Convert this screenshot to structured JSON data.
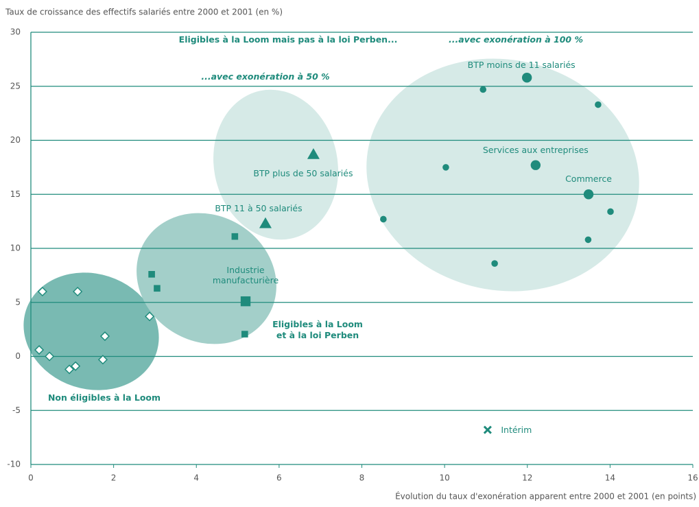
{
  "chart_data": {
    "type": "scatter",
    "y_axis_label": "Taux de croissance des effectifs salariés entre 2000 et 2001 (en %)",
    "x_axis_label": "Évolution du taux d'exonération apparent entre 2000 et 2001 (en points)",
    "xlim": [
      0,
      16
    ],
    "xticks": [
      0,
      2,
      4,
      6,
      8,
      10,
      12,
      14,
      16
    ],
    "ylim": [
      -10,
      30
    ],
    "yticks": [
      -10,
      -5,
      0,
      5,
      10,
      15,
      20,
      25,
      30
    ],
    "grid": true,
    "color": "#1f8b7c",
    "series": [
      {
        "marker": "diamond",
        "x": [
          0.28,
          1.13,
          1.79,
          2.87,
          0.2,
          0.45,
          1.08,
          0.93,
          1.74
        ],
        "values": [
          6.0,
          6.0,
          1.87,
          3.7,
          0.6,
          0.0,
          -0.9,
          -1.2,
          -0.3
        ]
      },
      {
        "marker": "square",
        "x": [
          2.92,
          3.05,
          4.93,
          5.19,
          5.17
        ],
        "values": [
          7.6,
          6.3,
          11.1,
          5.1,
          2.06
        ],
        "labels": [
          null,
          null,
          null,
          "Industrie manufacturière",
          null
        ]
      },
      {
        "marker": "triangle",
        "x": [
          6.83,
          5.67
        ],
        "values": [
          18.7,
          12.3
        ],
        "labels": [
          "BTP plus de 50 salariés",
          "BTP 11 à 50 salariés"
        ]
      },
      {
        "marker": "circle",
        "x": [
          10.93,
          11.99,
          13.71,
          10.03,
          12.2,
          13.48,
          8.52,
          14.01,
          13.47,
          11.21
        ],
        "values": [
          24.7,
          25.8,
          23.3,
          17.5,
          17.7,
          15.0,
          12.7,
          13.4,
          10.8,
          8.6
        ],
        "labels": [
          null,
          "BTP moins de 11 salariés",
          null,
          null,
          "Services aux entreprises",
          "Commerce",
          null,
          null,
          null,
          null
        ]
      },
      {
        "marker": "cross",
        "x": [
          11.04
        ],
        "values": [
          -6.8
        ],
        "labels": [
          "Intérim"
        ]
      }
    ],
    "annotations": [
      "Eligibles à la Loom mais pas à la loi Perben...",
      "...avec exonération à 100 %",
      "...avec exonération à 50 %",
      "Eligibles à la Loom et à la loi Perben",
      "Non éligibles à la Loom"
    ]
  }
}
